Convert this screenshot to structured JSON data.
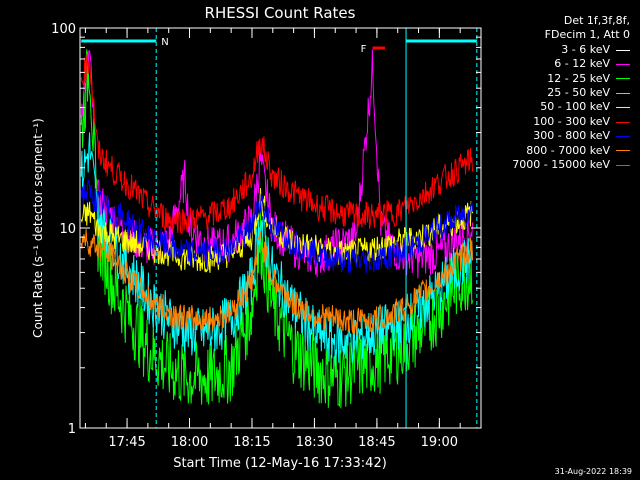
{
  "chart_data": {
    "type": "line",
    "title": "RHESSI Count Rates",
    "xlabel": "Start Time (12-May-16 17:33:42)",
    "ylabel": "Count Rate (s⁻¹ detector segment⁻¹)",
    "y_scale": "log",
    "ylim": [
      1,
      100
    ],
    "y_ticks": [
      "1",
      "10",
      "100"
    ],
    "x_range": [
      "17:33:42",
      "19:10:00"
    ],
    "x_ticks": [
      "17:45",
      "18:00",
      "18:15",
      "18:30",
      "18:45",
      "19:00"
    ],
    "grid": false,
    "legend_placement": "right-outside",
    "legend_header": [
      "Det 1f,3f,8f,",
      "FDecim 1, Att 0"
    ],
    "series": [
      {
        "name": "3 - 6 keV",
        "color": "#000000",
        "x": [
          "17:34",
          "17:36",
          "17:38",
          "17:42",
          "17:46",
          "17:50",
          "17:55",
          "18:00",
          "18:05",
          "18:10",
          "18:15",
          "18:17",
          "18:20",
          "18:25",
          "18:30",
          "18:35",
          "18:40",
          "18:45",
          "18:50",
          "18:55",
          "19:00",
          "19:05",
          "19:08"
        ],
        "y": [
          26,
          40,
          12,
          9,
          6,
          4.5,
          3.8,
          3.5,
          3.4,
          4,
          6.5,
          10,
          6,
          4,
          3,
          2.5,
          2.8,
          14,
          3.5,
          3.5,
          4.5,
          6,
          7
        ]
      },
      {
        "name": "6 - 12 keV",
        "color": "#ff00ff",
        "x": [
          "17:34",
          "17:36",
          "17:38",
          "17:42",
          "17:46",
          "17:50",
          "17:55",
          "17:59",
          "18:00",
          "18:05",
          "18:10",
          "18:15",
          "18:17",
          "18:20",
          "18:25",
          "18:30",
          "18:35",
          "18:40",
          "18:44",
          "18:46",
          "18:50",
          "18:55",
          "19:00",
          "19:05",
          "19:08"
        ],
        "y": [
          40,
          75,
          14,
          11,
          9,
          8,
          8.5,
          18,
          10,
          8,
          8.5,
          11,
          22,
          10,
          8,
          7,
          8,
          9,
          65,
          10,
          7.5,
          7,
          7.5,
          9,
          10
        ]
      },
      {
        "name": "12 - 25 keV",
        "color": "#00ff00",
        "x": [
          "17:34",
          "17:36",
          "17:38",
          "17:42",
          "17:46",
          "17:50",
          "17:55",
          "18:00",
          "18:05",
          "18:10",
          "18:15",
          "18:17",
          "18:20",
          "18:25",
          "18:30",
          "18:35",
          "18:40",
          "18:45",
          "18:50",
          "18:55",
          "19:00",
          "19:05",
          "19:08"
        ],
        "y": [
          30,
          70,
          9,
          5,
          3.5,
          2.5,
          2,
          1.8,
          1.8,
          2,
          4,
          9,
          4,
          2.5,
          2,
          1.8,
          2,
          2.2,
          2.5,
          3,
          4,
          5.5,
          6
        ]
      },
      {
        "name": "25 - 50 keV",
        "color": "#00ffff",
        "x": [
          "17:34",
          "17:36",
          "17:38",
          "17:42",
          "17:46",
          "17:50",
          "17:55",
          "18:00",
          "18:05",
          "18:10",
          "18:15",
          "18:17",
          "18:20",
          "18:25",
          "18:30",
          "18:35",
          "18:40",
          "18:45",
          "18:50",
          "18:55",
          "19:00",
          "19:05",
          "19:08"
        ],
        "y": [
          18,
          25,
          12,
          8,
          6,
          4.5,
          3.5,
          3,
          3,
          3.5,
          5.5,
          11,
          6,
          4,
          3,
          2.7,
          2.8,
          3,
          3.3,
          3.8,
          5,
          6.5,
          7
        ]
      },
      {
        "name": "50 - 100 keV",
        "color": "#ffff00",
        "x": [
          "17:34",
          "17:36",
          "17:38",
          "17:42",
          "17:46",
          "17:50",
          "17:55",
          "18:00",
          "18:05",
          "18:10",
          "18:15",
          "18:17",
          "18:20",
          "18:25",
          "18:30",
          "18:35",
          "18:40",
          "18:45",
          "18:50",
          "18:55",
          "19:00",
          "19:05",
          "19:08"
        ],
        "y": [
          11,
          12,
          10,
          9,
          8.5,
          8,
          7.5,
          7,
          7,
          7.5,
          9,
          14,
          10,
          8.5,
          8,
          7.5,
          7.5,
          8,
          8.5,
          9,
          10,
          11,
          12
        ]
      },
      {
        "name": "100 - 300 keV",
        "color": "#ff0000",
        "x": [
          "17:34",
          "17:36",
          "17:38",
          "17:42",
          "17:46",
          "17:50",
          "17:55",
          "18:00",
          "18:05",
          "18:10",
          "18:15",
          "18:17",
          "18:20",
          "18:25",
          "18:30",
          "18:35",
          "18:40",
          "18:45",
          "18:50",
          "18:55",
          "19:00",
          "19:05",
          "19:08"
        ],
        "y": [
          55,
          70,
          24,
          19,
          16,
          13,
          11,
          11,
          11.5,
          13,
          18,
          28,
          18,
          15,
          13,
          12,
          11.5,
          11.5,
          12,
          14,
          17,
          20,
          22
        ]
      },
      {
        "name": "300 - 800 keV",
        "color": "#0000ff",
        "x": [
          "17:34",
          "17:36",
          "17:38",
          "17:42",
          "17:46",
          "17:50",
          "17:55",
          "18:00",
          "18:05",
          "18:10",
          "18:15",
          "18:17",
          "18:20",
          "18:25",
          "18:30",
          "18:35",
          "18:40",
          "18:45",
          "18:50",
          "18:55",
          "19:00",
          "19:05",
          "19:08"
        ],
        "y": [
          15,
          15,
          13.5,
          12,
          10.5,
          9,
          8,
          7.5,
          7.5,
          8,
          10,
          14,
          10,
          8.5,
          7.5,
          7,
          6.8,
          7,
          7.5,
          8.5,
          10,
          11.5,
          12.5
        ]
      },
      {
        "name": "800 - 7000 keV",
        "color": "#ff8000",
        "x": [
          "17:34",
          "17:36",
          "17:38",
          "17:42",
          "17:46",
          "17:50",
          "17:55",
          "18:00",
          "18:05",
          "18:10",
          "18:15",
          "18:17",
          "18:20",
          "18:25",
          "18:30",
          "18:35",
          "18:40",
          "18:45",
          "18:50",
          "18:55",
          "19:00",
          "19:05",
          "19:08"
        ],
        "y": [
          9,
          8.5,
          8,
          7,
          5.5,
          4.5,
          3.8,
          3.5,
          3.5,
          3.8,
          5.5,
          9,
          5.5,
          4.2,
          3.7,
          3.5,
          3.4,
          3.5,
          3.8,
          4.5,
          5.5,
          7,
          8
        ]
      },
      {
        "name": "7000 - 15000 keV",
        "color": "#808000",
        "x": [],
        "y": []
      }
    ],
    "annotations": [
      {
        "label": "N",
        "color": "#00ffff",
        "from": "17:34",
        "to": "17:52"
      },
      {
        "label": "",
        "color": "#00ffff",
        "from": "18:52",
        "to": "19:09"
      },
      {
        "label": "F",
        "color": "#ff0000",
        "from": "18:43",
        "to": "18:46"
      }
    ],
    "timestamp": "31-Aug-2022 18:39"
  }
}
